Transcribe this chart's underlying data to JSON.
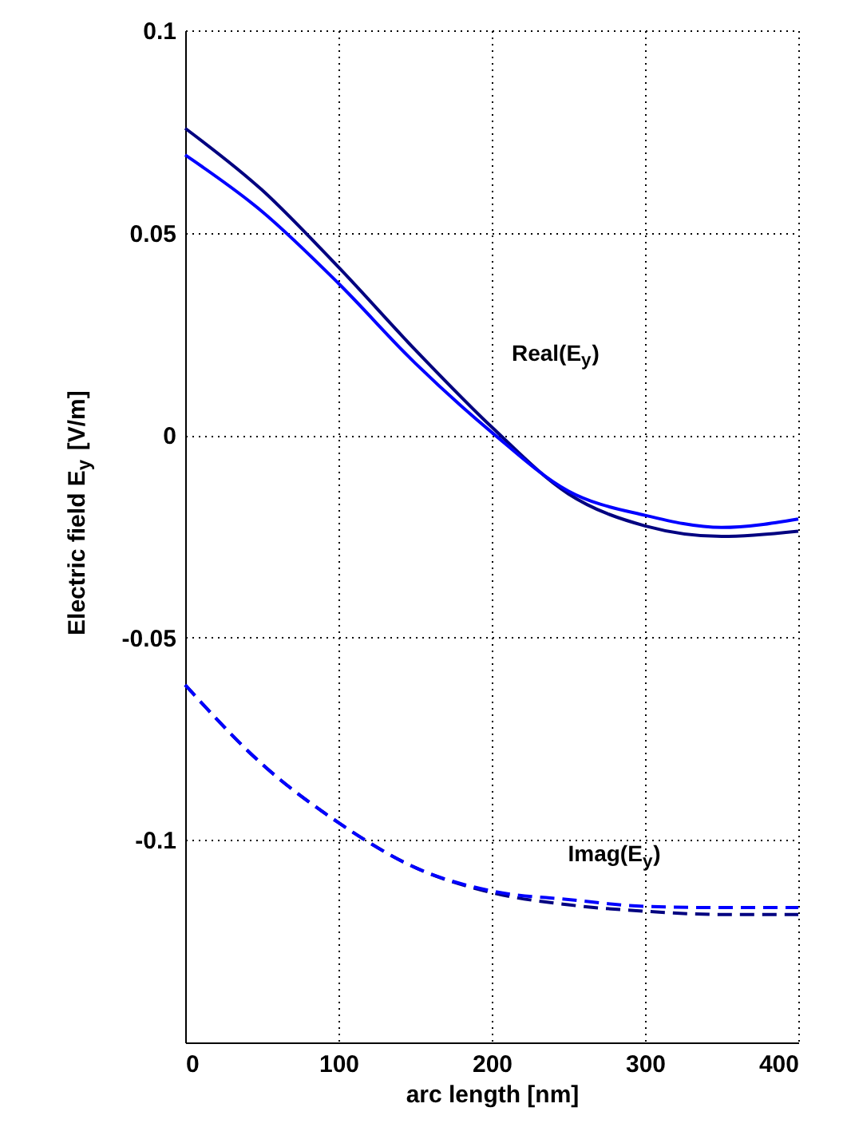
{
  "chart_data": {
    "type": "line",
    "xlabel": "arc length [nm]",
    "ylabel": "Electric field E$_{y}$ [V/m]",
    "x": [
      0,
      50,
      100,
      150,
      200,
      250,
      300,
      350,
      400
    ],
    "series": [
      {
        "color": "#000080",
        "line_style": "solid",
        "values": [
          0.0758,
          0.0606,
          0.0415,
          0.0211,
          0.002,
          -0.0145,
          -0.0224,
          -0.025,
          -0.0237
        ]
      },
      {
        "color": "#0000ff",
        "line_style": "solid",
        "values": [
          0.0692,
          0.0553,
          0.0375,
          0.0178,
          0.0007,
          -0.0138,
          -0.0198,
          -0.0228,
          -0.0207
        ]
      },
      {
        "color": "#000080",
        "line_style": "dashed",
        "values": [
          -0.0617,
          -0.0812,
          -0.0957,
          -0.1068,
          -0.113,
          -0.116,
          -0.1176,
          -0.1184,
          -0.1184
        ]
      },
      {
        "color": "#0000ff",
        "line_style": "dashed",
        "values": [
          -0.0617,
          -0.0812,
          -0.0957,
          -0.1068,
          -0.1126,
          -0.1147,
          -0.1164,
          -0.1167,
          -0.1167
        ]
      }
    ],
    "xlim": [
      0,
      400
    ],
    "xticks": [
      0,
      100,
      200,
      300,
      400
    ],
    "ylim": [
      -0.15,
      0.1
    ],
    "yticks": [
      -0.1,
      -0.05,
      0,
      0.05,
      0.1
    ],
    "grid": true,
    "marker": "none",
    "annotations": [
      "Real(E$_{y}$)",
      "Imag(E$_{y}$)"
    ]
  }
}
